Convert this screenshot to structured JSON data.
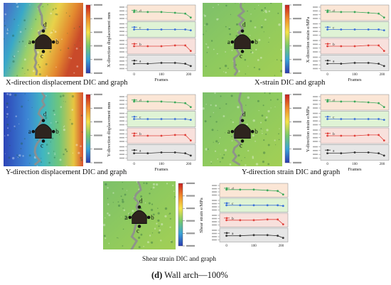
{
  "panels": [
    {
      "id": "xdisp",
      "caption": "X-direction displacement DIC and graph",
      "colorbar_title": "X-direction displacement mm",
      "graph_ylabel": "X-direction displacement mm",
      "graph_xlabel": "Frames",
      "field": "xdisp",
      "points": [
        "a",
        "b",
        "c",
        "d"
      ]
    },
    {
      "id": "xstrain",
      "caption": "X-strain DIC and graph",
      "colorbar_title": "X-direction strain e/MPa",
      "graph_ylabel": "X-direction strain e/MPa",
      "graph_xlabel": "Frames",
      "field": "green",
      "points": [
        "a",
        "b",
        "c",
        "d"
      ]
    },
    {
      "id": "ydisp",
      "caption": "Y-direction displacement DIC and graph",
      "colorbar_title": "Y-direction displacement mm",
      "graph_ylabel": "Y-direction displacement mm",
      "graph_xlabel": "Frames",
      "field": "ydisp",
      "points": [
        "a",
        "b",
        "c",
        "d"
      ]
    },
    {
      "id": "ystrain",
      "caption": "Y-direction strain DIC and graph",
      "colorbar_title": "Y-direction strain e/MPa",
      "graph_ylabel": "Y-direction strain e/MPa",
      "graph_xlabel": "Frames",
      "field": "green",
      "points": [
        "a",
        "b",
        "c",
        "d"
      ]
    },
    {
      "id": "shear",
      "caption": "Shear strain DIC and graph",
      "colorbar_title": "Shear strain e/MPa",
      "graph_ylabel": "Shear strain e/MPa",
      "graph_xlabel": "",
      "field": "green",
      "points": [
        "a",
        "b",
        "c",
        "d"
      ]
    }
  ],
  "strip_labels": [
    "d",
    "c",
    "b",
    "a"
  ],
  "strip_colors": {
    "d": {
      "bg": "#fbe6d6",
      "line": "#3aa85a"
    },
    "c": {
      "bg": "#dff3d5",
      "line": "#3b6fd8"
    },
    "b": {
      "bg": "#f8e0dc",
      "line": "#e0403a"
    },
    "a": {
      "bg": "#e6e6e6",
      "line": "#333333"
    }
  },
  "x_ticks": [
    "0",
    "100",
    "200"
  ],
  "figure_caption": {
    "label": "(d)",
    "text": " Wall arch—100%"
  }
}
